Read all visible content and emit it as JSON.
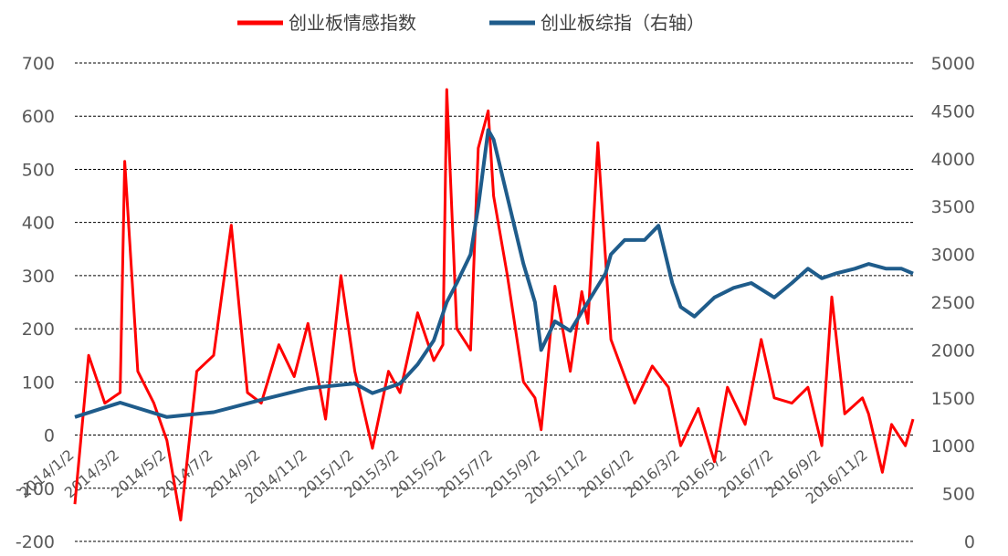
{
  "chart_data": {
    "type": "line",
    "legend_position": "top",
    "grid": true,
    "gridline_style": "dashed horizontal",
    "series": [
      {
        "name": "创业板情感指数",
        "axis": "left",
        "color": "#ff0000",
        "x": [
          "2014/1/2",
          "2014/1/20",
          "2014/2/10",
          "2014/3/2",
          "2014/3/8",
          "2014/3/25",
          "2014/4/15",
          "2014/5/2",
          "2014/5/20",
          "2014/6/10",
          "2014/7/2",
          "2014/7/25",
          "2014/8/15",
          "2014/9/2",
          "2014/9/25",
          "2014/10/15",
          "2014/11/2",
          "2014/11/25",
          "2014/12/15",
          "2015/1/2",
          "2015/1/25",
          "2015/2/15",
          "2015/3/2",
          "2015/3/25",
          "2015/4/15",
          "2015/4/27",
          "2015/5/2",
          "2015/5/15",
          "2015/6/2",
          "2015/6/12",
          "2015/6/25",
          "2015/7/2",
          "2015/7/20",
          "2015/8/10",
          "2015/8/25",
          "2015/9/2",
          "2015/9/20",
          "2015/10/10",
          "2015/10/25",
          "2015/11/2",
          "2015/11/15",
          "2015/12/2",
          "2015/12/20",
          "2016/1/2",
          "2016/1/25",
          "2016/2/15",
          "2016/3/2",
          "2016/3/25",
          "2016/4/15",
          "2016/5/2",
          "2016/5/25",
          "2016/6/15",
          "2016/7/2",
          "2016/7/25",
          "2016/8/15",
          "2016/9/2",
          "2016/9/15",
          "2016/10/2",
          "2016/10/25",
          "2016/11/2",
          "2016/11/20",
          "2016/12/2",
          "2016/12/20",
          "2016/12/30"
        ],
        "values": [
          -130,
          150,
          60,
          80,
          515,
          120,
          60,
          -10,
          -160,
          120,
          150,
          395,
          80,
          60,
          170,
          110,
          210,
          30,
          300,
          120,
          -25,
          120,
          80,
          230,
          140,
          170,
          650,
          200,
          160,
          540,
          610,
          450,
          300,
          100,
          70,
          10,
          280,
          120,
          270,
          210,
          550,
          180,
          110,
          60,
          130,
          90,
          -20,
          50,
          -50,
          90,
          20,
          180,
          70,
          60,
          90,
          -20,
          260,
          40,
          70,
          40,
          -70,
          20,
          -20,
          30
        ]
      },
      {
        "name": "创业板综指（右轴）",
        "axis": "right",
        "color": "#1f5c8b",
        "x": [
          "2014/1/2",
          "2014/3/2",
          "2014/5/2",
          "2014/7/2",
          "2014/9/2",
          "2014/11/2",
          "2015/1/2",
          "2015/1/25",
          "2015/3/2",
          "2015/3/25",
          "2015/4/15",
          "2015/5/2",
          "2015/5/15",
          "2015/6/2",
          "2015/6/12",
          "2015/6/25",
          "2015/7/2",
          "2015/7/20",
          "2015/8/10",
          "2015/8/25",
          "2015/9/2",
          "2015/9/20",
          "2015/10/10",
          "2015/11/2",
          "2015/11/25",
          "2015/12/2",
          "2015/12/20",
          "2016/1/2",
          "2016/1/15",
          "2016/2/2",
          "2016/2/20",
          "2016/3/2",
          "2016/3/20",
          "2016/4/15",
          "2016/5/10",
          "2016/6/2",
          "2016/7/2",
          "2016/7/25",
          "2016/8/15",
          "2016/9/2",
          "2016/9/20",
          "2016/10/15",
          "2016/11/2",
          "2016/11/25",
          "2016/12/15",
          "2016/12/30"
        ],
        "values": [
          1300,
          1450,
          1300,
          1350,
          1480,
          1600,
          1650,
          1550,
          1650,
          1850,
          2100,
          2500,
          2700,
          3000,
          3500,
          4300,
          4200,
          3600,
          2900,
          2500,
          2000,
          2300,
          2200,
          2500,
          2800,
          3000,
          3150,
          3150,
          3150,
          3300,
          2700,
          2450,
          2350,
          2550,
          2650,
          2700,
          2550,
          2700,
          2850,
          2750,
          2800,
          2850,
          2900,
          2850,
          2850,
          2800
        ]
      }
    ],
    "y_left": {
      "min": -200,
      "max": 700,
      "ticks": [
        "-200",
        "-100",
        "0",
        "100",
        "200",
        "300",
        "400",
        "500",
        "600",
        "700"
      ]
    },
    "y_right": {
      "min": 0,
      "max": 5000,
      "ticks": [
        "0",
        "500",
        "1000",
        "1500",
        "2000",
        "2500",
        "3000",
        "3500",
        "4000",
        "4500",
        "5000"
      ]
    },
    "x_axis": {
      "start": "2014/1/2",
      "end": "2016/12/30",
      "tick_labels": [
        "2014/1/2",
        "2014/3/2",
        "2014/5/2",
        "2014/7/2",
        "2014/9/2",
        "2014/11/2",
        "2015/1/2",
        "2015/3/2",
        "2015/5/2",
        "2015/7/2",
        "2015/9/2",
        "2015/11/2",
        "2016/1/2",
        "2016/3/2",
        "2016/5/2",
        "2016/7/2",
        "2016/9/2",
        "2016/11/2"
      ]
    }
  }
}
